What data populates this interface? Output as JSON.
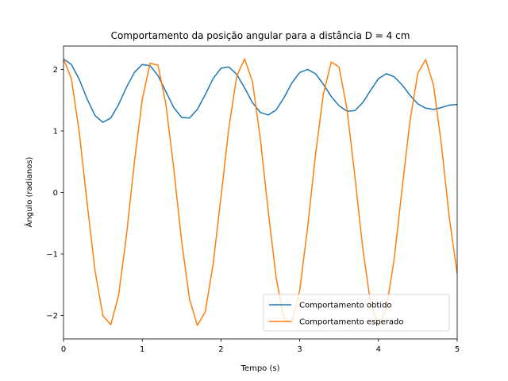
{
  "chart_data": {
    "type": "line",
    "title": "Comportamento da posição angular para a distância D = 4 cm",
    "xlabel": "Tempo (s)",
    "ylabel": "Ângulo (radianos)",
    "xlim": [
      0,
      5
    ],
    "ylim": [
      -2.38,
      2.38
    ],
    "xticks": [
      0,
      1,
      2,
      3,
      4,
      5
    ],
    "xtick_labels": [
      "0",
      "1",
      "2",
      "3",
      "4",
      "5"
    ],
    "yticks": [
      -2,
      -1,
      0,
      1,
      2
    ],
    "ytick_labels": [
      "−2",
      "−1",
      "0",
      "1",
      "2"
    ],
    "grid": false,
    "legend_position": "lower right",
    "series": [
      {
        "name": "Comportamento obtido",
        "color": "#1f77b4",
        "x": [
          0.0,
          0.1,
          0.2,
          0.3,
          0.4,
          0.5,
          0.6,
          0.7,
          0.8,
          0.9,
          1.0,
          1.1,
          1.2,
          1.3,
          1.4,
          1.5,
          1.6,
          1.7,
          1.8,
          1.9,
          2.0,
          2.1,
          2.2,
          2.3,
          2.4,
          2.5,
          2.6,
          2.7,
          2.8,
          2.9,
          3.0,
          3.1,
          3.2,
          3.3,
          3.4,
          3.5,
          3.6,
          3.7,
          3.8,
          3.9,
          4.0,
          4.1,
          4.2,
          4.3,
          4.4,
          4.5,
          4.6,
          4.7,
          4.8,
          4.9,
          5.0
        ],
        "y": [
          2.17,
          2.08,
          1.84,
          1.52,
          1.25,
          1.14,
          1.21,
          1.43,
          1.71,
          1.95,
          2.08,
          2.06,
          1.9,
          1.64,
          1.38,
          1.22,
          1.21,
          1.35,
          1.59,
          1.85,
          2.02,
          2.04,
          1.92,
          1.7,
          1.46,
          1.3,
          1.26,
          1.34,
          1.54,
          1.78,
          1.95,
          2.0,
          1.93,
          1.76,
          1.56,
          1.41,
          1.32,
          1.33,
          1.46,
          1.66,
          1.85,
          1.93,
          1.88,
          1.75,
          1.58,
          1.44,
          1.37,
          1.35,
          1.38,
          1.42,
          1.43
        ]
      },
      {
        "name": "Comportamento esperado",
        "color": "#ff7f0e",
        "x": [
          0.0,
          0.1,
          0.2,
          0.3,
          0.4,
          0.5,
          0.6,
          0.7,
          0.8,
          0.9,
          1.0,
          1.1,
          1.2,
          1.3,
          1.4,
          1.5,
          1.6,
          1.7,
          1.8,
          1.9,
          2.0,
          2.1,
          2.2,
          2.3,
          2.4,
          2.5,
          2.6,
          2.7,
          2.8,
          2.9,
          3.0,
          3.1,
          3.2,
          3.3,
          3.4,
          3.5,
          3.6,
          3.7,
          3.8,
          3.9,
          4.0,
          4.1,
          4.2,
          4.3,
          4.4,
          4.5,
          4.6,
          4.7,
          4.8,
          4.9,
          5.0
        ],
        "y": [
          2.17,
          1.85,
          0.98,
          -0.17,
          -1.27,
          -2.0,
          -2.15,
          -1.67,
          -0.69,
          0.49,
          1.51,
          2.1,
          2.07,
          1.44,
          0.39,
          -0.79,
          -1.73,
          -2.16,
          -1.94,
          -1.17,
          -0.07,
          1.05,
          1.89,
          2.17,
          1.8,
          0.87,
          -0.3,
          -1.38,
          -2.05,
          -2.12,
          -1.59,
          -0.57,
          0.61,
          1.6,
          2.12,
          2.04,
          1.36,
          0.27,
          -0.9,
          -1.8,
          -2.17,
          -1.89,
          -1.08,
          0.06,
          1.16,
          1.94,
          2.16,
          1.74,
          0.77,
          -0.41,
          -1.32
        ]
      }
    ]
  }
}
